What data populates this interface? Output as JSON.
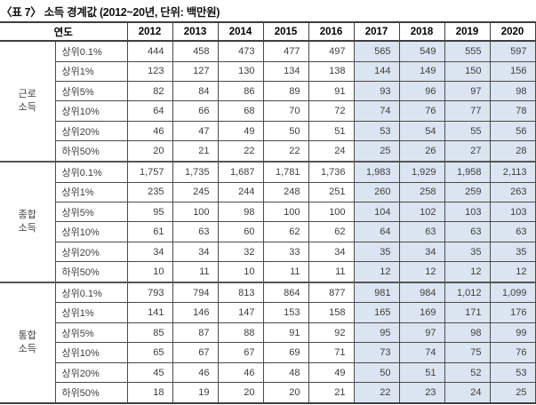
{
  "title": "〈표 7〉 소득 경계값 (2012~20년, 단위: 백만원)",
  "colors": {
    "highlight_fill": "#dbe5f1",
    "border": "#3f3f3f",
    "body_text": "#3d3d3d",
    "header_text": "#000000"
  },
  "table": {
    "year_header_label": "연도",
    "years": [
      "2012",
      "2013",
      "2014",
      "2015",
      "2016",
      "2017",
      "2018",
      "2019",
      "2020"
    ],
    "highlight_from_index": 5,
    "row_labels": [
      "상위0.1%",
      "상위1%",
      "상위5%",
      "상위10%",
      "상위20%",
      "하위50%"
    ],
    "groups": [
      {
        "name": "근로소득",
        "name_lines": [
          "근로",
          "소득"
        ],
        "rows": [
          [
            "444",
            "458",
            "473",
            "477",
            "497",
            "565",
            "549",
            "555",
            "597"
          ],
          [
            "123",
            "127",
            "130",
            "134",
            "138",
            "144",
            "149",
            "150",
            "156"
          ],
          [
            "82",
            "84",
            "86",
            "89",
            "91",
            "93",
            "96",
            "97",
            "98"
          ],
          [
            "64",
            "66",
            "68",
            "70",
            "72",
            "74",
            "76",
            "77",
            "78"
          ],
          [
            "46",
            "47",
            "49",
            "50",
            "51",
            "53",
            "54",
            "55",
            "56"
          ],
          [
            "20",
            "21",
            "22",
            "22",
            "24",
            "25",
            "26",
            "27",
            "28"
          ]
        ]
      },
      {
        "name": "종합소득",
        "name_lines": [
          "종합",
          "소득"
        ],
        "rows": [
          [
            "1,757",
            "1,735",
            "1,687",
            "1,781",
            "1,736",
            "1,983",
            "1,929",
            "1,958",
            "2,113"
          ],
          [
            "235",
            "245",
            "244",
            "248",
            "251",
            "260",
            "258",
            "259",
            "263"
          ],
          [
            "95",
            "100",
            "98",
            "100",
            "100",
            "104",
            "102",
            "103",
            "103"
          ],
          [
            "61",
            "63",
            "60",
            "62",
            "62",
            "64",
            "63",
            "63",
            "63"
          ],
          [
            "34",
            "34",
            "32",
            "33",
            "34",
            "35",
            "34",
            "35",
            "35"
          ],
          [
            "10",
            "11",
            "10",
            "11",
            "11",
            "12",
            "12",
            "12",
            "12"
          ]
        ]
      },
      {
        "name": "통합소득",
        "name_lines": [
          "통합",
          "소득"
        ],
        "rows": [
          [
            "793",
            "794",
            "813",
            "864",
            "877",
            "981",
            "984",
            "1,012",
            "1,099"
          ],
          [
            "141",
            "146",
            "147",
            "153",
            "158",
            "165",
            "169",
            "171",
            "176"
          ],
          [
            "85",
            "87",
            "88",
            "91",
            "92",
            "95",
            "97",
            "98",
            "99"
          ],
          [
            "65",
            "67",
            "67",
            "69",
            "71",
            "73",
            "74",
            "75",
            "76"
          ],
          [
            "45",
            "46",
            "46",
            "48",
            "49",
            "50",
            "51",
            "52",
            "53"
          ],
          [
            "18",
            "19",
            "20",
            "20",
            "21",
            "22",
            "23",
            "24",
            "25"
          ]
        ]
      }
    ]
  }
}
